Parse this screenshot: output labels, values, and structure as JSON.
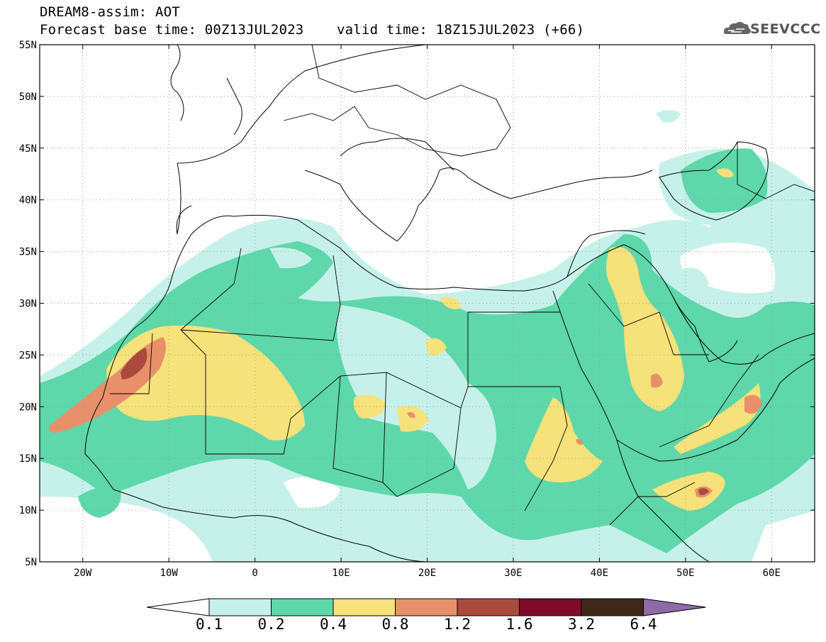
{
  "title": {
    "line1": "DREAM8-assim: AOT",
    "base_time": "Forecast base time: 00Z13JUL2023",
    "valid_time": "valid time: 18Z15JUL2023 (+66)"
  },
  "logo": {
    "text": "SEEVCCC",
    "icon": "cloud-icon"
  },
  "map": {
    "lat_labels": [
      "55N",
      "50N",
      "45N",
      "40N",
      "35N",
      "30N",
      "25N",
      "20N",
      "15N",
      "10N",
      "5N"
    ],
    "lon_labels": [
      "20W",
      "10W",
      "0",
      "10E",
      "20E",
      "30E",
      "40E",
      "50E",
      "60E"
    ],
    "lon_range": [
      -25,
      65
    ],
    "lat_range": [
      5,
      55
    ],
    "grid": true
  },
  "colorbar": {
    "labels": [
      "0.1",
      "0.2",
      "0.4",
      "0.8",
      "1.2",
      "1.6",
      "3.2",
      "6.4"
    ],
    "colors": [
      "#ffffff",
      "#c6f1ea",
      "#5ed7aa",
      "#f6e27a",
      "#e8906a",
      "#aa4a3c",
      "#7d0c28",
      "#3f2818",
      "#8e6aa8"
    ]
  }
}
